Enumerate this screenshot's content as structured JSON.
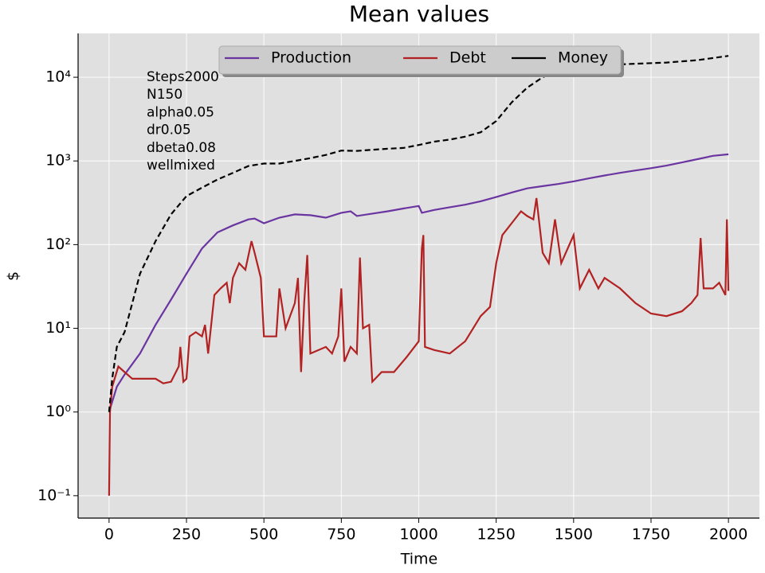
{
  "chart_data": {
    "type": "line",
    "title": "Mean values",
    "x_label": "Time",
    "y_label": "$",
    "log_y": true,
    "grid": true,
    "background": "#e0e0e0",
    "legend_position": "upper center",
    "xlim": [
      -100,
      2100
    ],
    "xticks": [
      0,
      250,
      500,
      750,
      1000,
      1250,
      1500,
      1750,
      2000
    ],
    "ylim": [
      0.054,
      33400
    ],
    "yticks": [
      {
        "value": 0.1,
        "label": "10⁻¹"
      },
      {
        "value": 1,
        "label": "10⁰"
      },
      {
        "value": 10,
        "label": "10¹"
      },
      {
        "value": 100,
        "label": "10²"
      },
      {
        "value": 1000,
        "label": "10³"
      },
      {
        "value": 10000,
        "label": "10⁴"
      }
    ],
    "annotations": [
      "Steps2000",
      "N150",
      "alpha0.05",
      "dr0.05",
      "dbeta0.08",
      "wellmixed"
    ],
    "series": [
      {
        "name": "Production",
        "color": "#6a35a0",
        "linestyle": "solid",
        "x": [
          0,
          25,
          50,
          100,
          150,
          200,
          250,
          300,
          350,
          400,
          450,
          470,
          500,
          550,
          600,
          650,
          700,
          750,
          780,
          800,
          850,
          900,
          950,
          1000,
          1010,
          1050,
          1100,
          1150,
          1200,
          1250,
          1300,
          1350,
          1400,
          1450,
          1500,
          1550,
          1600,
          1650,
          1700,
          1750,
          1800,
          1850,
          1900,
          1950,
          2000
        ],
        "values": [
          1,
          2,
          2.8,
          5,
          11,
          22,
          45,
          90,
          140,
          170,
          200,
          205,
          180,
          210,
          230,
          225,
          210,
          240,
          250,
          220,
          235,
          250,
          270,
          290,
          240,
          260,
          280,
          300,
          330,
          370,
          420,
          470,
          500,
          530,
          570,
          620,
          670,
          720,
          770,
          820,
          880,
          960,
          1050,
          1150,
          1200
        ]
      },
      {
        "name": "Debt",
        "color": "#b22222",
        "linestyle": "solid",
        "x": [
          0,
          3,
          10,
          30,
          50,
          75,
          100,
          150,
          175,
          200,
          225,
          230,
          240,
          250,
          260,
          280,
          300,
          310,
          320,
          340,
          360,
          380,
          390,
          400,
          420,
          440,
          460,
          470,
          490,
          500,
          540,
          550,
          570,
          600,
          610,
          620,
          630,
          640,
          650,
          700,
          720,
          740,
          750,
          760,
          780,
          800,
          810,
          820,
          840,
          850,
          880,
          920,
          960,
          1000,
          1010,
          1015,
          1020,
          1050,
          1100,
          1150,
          1200,
          1230,
          1250,
          1270,
          1300,
          1330,
          1350,
          1370,
          1380,
          1400,
          1420,
          1440,
          1460,
          1500,
          1520,
          1550,
          1580,
          1600,
          1650,
          1700,
          1750,
          1800,
          1850,
          1880,
          1900,
          1910,
          1920,
          1950,
          1970,
          1990,
          1995,
          2000
        ],
        "values": [
          0.1,
          1,
          2,
          3.5,
          3,
          2.5,
          2.5,
          2.5,
          2.2,
          2.3,
          3.5,
          6,
          2.3,
          2.5,
          8,
          9,
          8,
          11,
          5,
          25,
          30,
          35,
          20,
          40,
          60,
          50,
          110,
          80,
          40,
          8,
          8,
          30,
          10,
          20,
          40,
          3,
          20,
          75,
          5,
          6,
          5,
          8,
          30,
          4,
          6,
          5,
          70,
          10,
          11,
          2.3,
          3,
          3,
          4.5,
          7,
          90,
          130,
          6,
          5.5,
          5,
          7,
          14,
          18,
          60,
          130,
          180,
          250,
          220,
          200,
          360,
          80,
          60,
          200,
          60,
          130,
          30,
          50,
          30,
          40,
          30,
          20,
          15,
          14,
          16,
          20,
          25,
          120,
          30,
          30,
          35,
          25,
          200,
          28
        ]
      },
      {
        "name": "Money",
        "color": "#000000",
        "linestyle": "dashed",
        "x": [
          0,
          10,
          25,
          50,
          75,
          100,
          150,
          200,
          250,
          300,
          350,
          400,
          450,
          500,
          550,
          600,
          650,
          700,
          750,
          800,
          850,
          900,
          950,
          1000,
          1050,
          1100,
          1150,
          1200,
          1250,
          1300,
          1350,
          1400,
          1450,
          1500,
          1550,
          1600,
          1700,
          1800,
          1900,
          2000
        ],
        "values": [
          1,
          2.5,
          6,
          9,
          20,
          45,
          110,
          230,
          380,
          480,
          600,
          720,
          870,
          930,
          930,
          1000,
          1080,
          1180,
          1330,
          1320,
          1360,
          1400,
          1430,
          1550,
          1700,
          1800,
          1950,
          2200,
          3000,
          5000,
          7500,
          10000,
          12000,
          13000,
          13500,
          14000,
          14500,
          15000,
          16000,
          18000
        ]
      }
    ]
  }
}
